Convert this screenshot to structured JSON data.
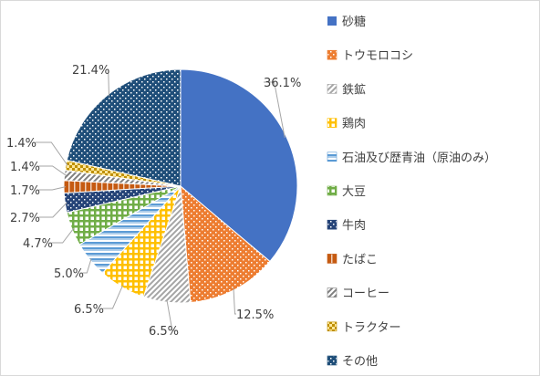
{
  "chart_data": {
    "type": "pie",
    "title": "",
    "legend_position": "right",
    "slices": [
      {
        "name": "砂糖",
        "value": 36.1,
        "label": "36.1%",
        "color": "#4472c4",
        "pattern": "solid"
      },
      {
        "name": "トウモロコシ",
        "value": 12.5,
        "label": "12.5%",
        "color": "#ed7d31",
        "pattern": "dots"
      },
      {
        "name": "鉄鉱",
        "value": 6.5,
        "label": "6.5%",
        "color": "#a5a5a5",
        "pattern": "diagonal"
      },
      {
        "name": "鶏肉",
        "value": 6.5,
        "label": "6.5%",
        "color": "#ffc000",
        "pattern": "grid"
      },
      {
        "name": "石油及び歴青油（原油のみ）",
        "value": 5.0,
        "label": "5.0%",
        "color": "#5b9bd5",
        "pattern": "horizontal"
      },
      {
        "name": "大豆",
        "value": 4.7,
        "label": "4.7%",
        "color": "#70ad47",
        "pattern": "grid"
      },
      {
        "name": "牛肉",
        "value": 2.7,
        "label": "2.7%",
        "color": "#264478",
        "pattern": "dots"
      },
      {
        "name": "たばこ",
        "value": 1.7,
        "label": "1.7%",
        "color": "#c55a11",
        "pattern": "vertical"
      },
      {
        "name": "コーヒー",
        "value": 1.4,
        "label": "1.4%",
        "color": "#7f7f7f",
        "pattern": "diagonal"
      },
      {
        "name": "トラクター",
        "value": 1.4,
        "label": "1.4%",
        "color": "#bf9000",
        "pattern": "checker"
      },
      {
        "name": "その他",
        "value": 21.4,
        "label": "21.4%",
        "color": "#1f4e79",
        "pattern": "dots"
      }
    ]
  }
}
